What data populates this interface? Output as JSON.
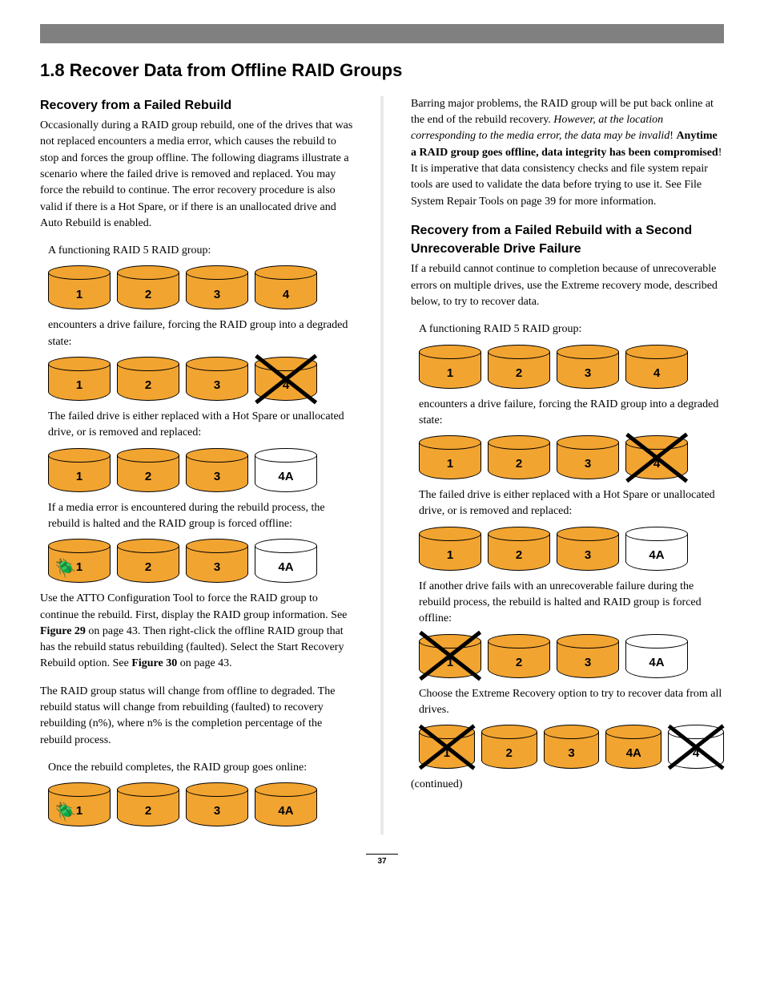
{
  "page_number": "37",
  "section_title": "1.8 Recover Data from Offline RAID Groups",
  "left": {
    "h1": "Recovery from a Failed Rebuild",
    "p1": "Occasionally during a RAID group rebuild, one of the drives that was not replaced encounters a media error, which causes the rebuild to stop and forces the group offline. The following diagrams illustrate a scenario where the failed drive is removed and replaced. You may force the rebuild to continue. The error recovery procedure is also valid if there is a Hot Spare, or if there is an unallocated drive and Auto Rebuild is enabled.",
    "c1": "A functioning RAID 5 RAID group:",
    "g1": [
      {
        "label": "1",
        "filled": true
      },
      {
        "label": "2",
        "filled": true
      },
      {
        "label": "3",
        "filled": true
      },
      {
        "label": "4",
        "filled": true
      }
    ],
    "c2": "encounters a drive failure, forcing the RAID group into a degraded state:",
    "g2": [
      {
        "label": "1",
        "filled": true
      },
      {
        "label": "2",
        "filled": true
      },
      {
        "label": "3",
        "filled": true
      },
      {
        "label": "4",
        "filled": true,
        "x": true
      }
    ],
    "c3": "The failed drive is either replaced with a Hot Spare or unallocated drive, or is removed and replaced:",
    "g3": [
      {
        "label": "1",
        "filled": true
      },
      {
        "label": "2",
        "filled": true
      },
      {
        "label": "3",
        "filled": true
      },
      {
        "label": "4A",
        "filled": false
      }
    ],
    "c4": "If a media error is encountered during the rebuild process, the rebuild is halted and the RAID group is forced offline:",
    "g4": [
      {
        "label": "1",
        "filled": true,
        "bug": true
      },
      {
        "label": "2",
        "filled": true
      },
      {
        "label": "3",
        "filled": true
      },
      {
        "label": "4A",
        "filled": false
      }
    ],
    "p2a": "Use the ATTO Configuration Tool to force the RAID group to continue the rebuild. First, display the RAID group information. See ",
    "p2b": "Figure 29",
    "p2c": " on page 43. Then right-click the offline RAID group that has the rebuild status rebuilding (faulted). Select the Start Recovery Rebuild option. See ",
    "p2d": "Figure 30",
    "p2e": " on page 43.",
    "p3": "The RAID group status will change from offline to degraded. The rebuild status will change from rebuilding (faulted) to recovery rebuilding (n%), where n% is the completion percentage of the rebuild process.",
    "c5": "Once the rebuild completes, the RAID group goes online:",
    "g5": [
      {
        "label": "1",
        "filled": true,
        "bug": true
      },
      {
        "label": "2",
        "filled": true
      },
      {
        "label": "3",
        "filled": true
      },
      {
        "label": "4A",
        "filled": true
      }
    ]
  },
  "right": {
    "p1a": "Barring major problems, the RAID group will be put back online at the end of the rebuild recovery. ",
    "p1b": "However, at the location corresponding to the media error, the data may be invalid",
    "p1c": "! ",
    "p1d": "Anytime a RAID group goes offline, data integrity has been compromised",
    "p1e": "! It is imperative that data consistency checks and file system repair tools are used to validate the data before trying to use it. See File System Repair Tools on page 39 for more information.",
    "h1": "Recovery from a Failed Rebuild with a Second Unrecoverable Drive Failure",
    "p2": "If a rebuild cannot continue to completion because of unrecoverable errors on multiple drives, use the Extreme recovery mode, described below, to try to recover data.",
    "c1": "A functioning RAID 5 RAID group:",
    "g1": [
      {
        "label": "1",
        "filled": true
      },
      {
        "label": "2",
        "filled": true
      },
      {
        "label": "3",
        "filled": true
      },
      {
        "label": "4",
        "filled": true
      }
    ],
    "c2": "encounters a drive failure, forcing the RAID group into a degraded state:",
    "g2": [
      {
        "label": "1",
        "filled": true
      },
      {
        "label": "2",
        "filled": true
      },
      {
        "label": "3",
        "filled": true
      },
      {
        "label": "4",
        "filled": true,
        "x": true
      }
    ],
    "c3": "The failed drive is either replaced with a Hot Spare or unallocated drive, or is removed and replaced:",
    "g3": [
      {
        "label": "1",
        "filled": true
      },
      {
        "label": "2",
        "filled": true
      },
      {
        "label": "3",
        "filled": true
      },
      {
        "label": "4A",
        "filled": false
      }
    ],
    "c4": "If another drive fails with an unrecoverable failure during the rebuild process, the rebuild is halted and RAID group is forced offline:",
    "g4": [
      {
        "label": "1",
        "filled": true,
        "x": true
      },
      {
        "label": "2",
        "filled": true
      },
      {
        "label": "3",
        "filled": true
      },
      {
        "label": "4A",
        "filled": false
      }
    ],
    "c5": "Choose the Extreme Recovery option to try to recover data from all drives.",
    "g5": [
      {
        "label": "1",
        "filled": true,
        "x": true
      },
      {
        "label": "2",
        "filled": true
      },
      {
        "label": "3",
        "filled": true
      },
      {
        "label": "4A",
        "filled": true
      },
      {
        "label": "4",
        "filled": false,
        "x": true
      }
    ],
    "cont": "(continued)"
  },
  "colors": {
    "drive_fill": "#f2a431",
    "bar": "#808080"
  }
}
